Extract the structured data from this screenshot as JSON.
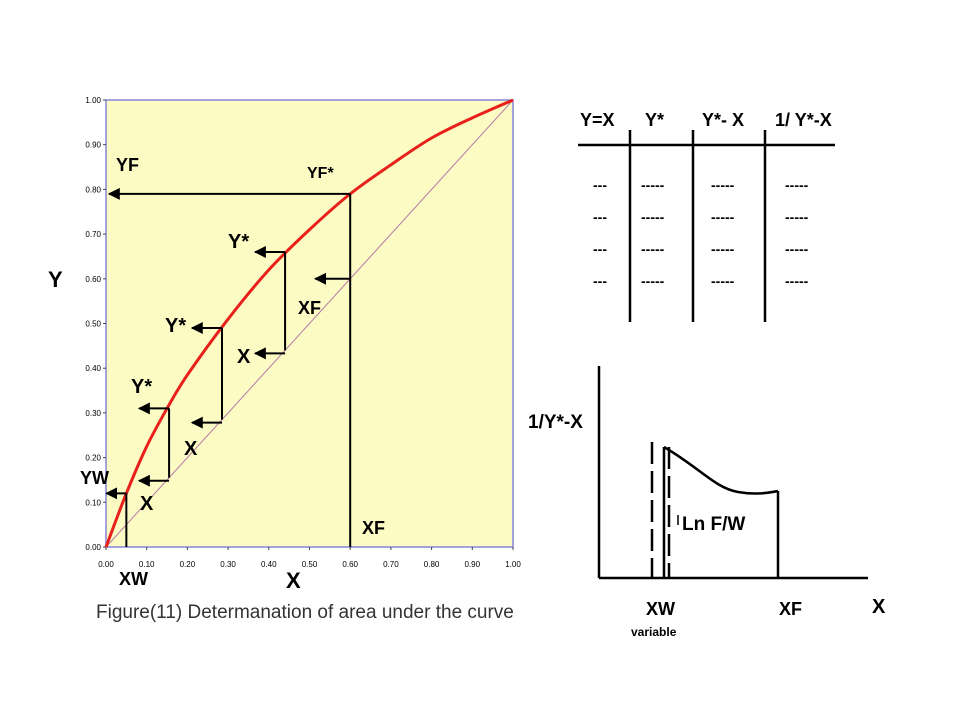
{
  "left_chart": {
    "y_label": "Y",
    "x_label": "X",
    "y_ticks": [
      "0.00",
      "0.10",
      "0.20",
      "0.30",
      "0.40",
      "0.50",
      "0.60",
      "0.70",
      "0.80",
      "0.90",
      "1.00"
    ],
    "x_ticks": [
      "0.00",
      "0.10",
      "0.20",
      "0.30",
      "0.40",
      "0.50",
      "0.60",
      "0.70",
      "0.80",
      "0.90",
      "1.00"
    ],
    "labels": {
      "yf": "YF",
      "yf_star": "YF*",
      "y_star": "Y*",
      "x": "X",
      "xf": "XF",
      "yw": "YW",
      "xw": "XW"
    },
    "colors": {
      "plot_bg": "#fdfbc4",
      "equilibrium": "#e8201c",
      "diagonal": "#b27aa6",
      "frame": "#8585d6"
    }
  },
  "chart_data": {
    "type": "line",
    "xlabel": "X",
    "ylabel": "Y",
    "xlim": [
      0,
      1
    ],
    "ylim": [
      0,
      1
    ],
    "series": [
      {
        "x": [
          0,
          0.05,
          0.1,
          0.15,
          0.2,
          0.3,
          0.4,
          0.5,
          0.6,
          0.7,
          0.8,
          0.9,
          1.0
        ],
        "values": [
          0,
          0.12,
          0.225,
          0.31,
          0.385,
          0.51,
          0.62,
          0.71,
          0.79,
          0.855,
          0.915,
          0.96,
          1.0
        ]
      },
      {
        "x": [
          0,
          1
        ],
        "values": [
          0,
          1
        ]
      }
    ],
    "steps": [
      {
        "x": 0.05,
        "y_star": 0.12
      },
      {
        "x": 0.155,
        "y_star": 0.31
      },
      {
        "x": 0.285,
        "y_star": 0.49
      },
      {
        "x": 0.44,
        "y_star": 0.66
      },
      {
        "x": 0.6,
        "y_star": 0.79
      }
    ]
  },
  "table": {
    "headers": [
      "Y=X",
      "Y*",
      "Y*- X",
      "1/ Y*-X"
    ],
    "rows": [
      [
        "---",
        "-----",
        "-----",
        "-----"
      ],
      [
        "---",
        "-----",
        "-----",
        "-----"
      ],
      [
        "---",
        "-----",
        "-----",
        "-----"
      ],
      [
        "---",
        "-----",
        "-----",
        "-----"
      ]
    ]
  },
  "area_chart": {
    "y_label": "1/Y*-X",
    "x_label": "X",
    "xw": "XW",
    "xf": "XF",
    "variable": "variable",
    "area_label": "Ln F/W"
  },
  "caption": "Figure(11) Determanation of area under the curve"
}
